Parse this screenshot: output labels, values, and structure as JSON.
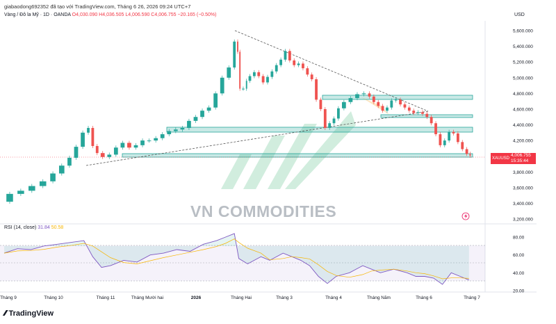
{
  "header": {
    "caption": "giabaodong692352 đã tạo với TradingView.com, Tháng 6 26, 2026 09:24 UTC+7",
    "symbol_line": "Vàng / Đô la Mỹ · 1D · OANDA",
    "ohlc": "O4,030.090 H4,036.505 L4,006.590 C4,006.755 −20.165 (−0.50%)",
    "currency": "USD"
  },
  "price_tag": {
    "symbol": "XAUUSD",
    "price": "4,006.755",
    "countdown": "15:35:44"
  },
  "rsi": {
    "label": "RSI (14, close)",
    "value1": "31.84",
    "value2": "50.58"
  },
  "watermark": "VN COMMODITIES",
  "footer": {
    "brand": "TradingView"
  },
  "colors": {
    "up": "#26a69a",
    "down": "#ef5350",
    "zone": "#26a69a",
    "rsi": "#7e57c2",
    "rsi_ma": "#f7b500"
  },
  "chart_data": {
    "type": "line",
    "title": "Vàng / Đô la Mỹ · 1D · OANDA",
    "price_axis": {
      "labels": [
        "5,600.000",
        "5,400.000",
        "5,200.000",
        "5,000.000",
        "4,800.000",
        "4,600.000",
        "4,400.000",
        "4,200.000",
        "3,800.000",
        "3,600.000",
        "3,400.000",
        "3,200.000"
      ],
      "range": [
        3200,
        5600
      ]
    },
    "rsi_axis": {
      "labels": [
        "80.00",
        "60.00",
        "40.00",
        "20.00"
      ],
      "range": [
        20,
        80
      ]
    },
    "x_labels": [
      {
        "text": "Tháng 9",
        "bold": false
      },
      {
        "text": "Tháng 10",
        "bold": false
      },
      {
        "text": "Tháng 11",
        "bold": false
      },
      {
        "text": "Tháng Mười hai",
        "bold": false
      },
      {
        "text": "2026",
        "bold": true
      },
      {
        "text": "Tháng Hai",
        "bold": false
      },
      {
        "text": "Tháng 3",
        "bold": false
      },
      {
        "text": "Tháng 4",
        "bold": false
      },
      {
        "text": "Tháng Năm",
        "bold": false
      },
      {
        "text": "Tháng 6",
        "bold": false
      },
      {
        "text": "Tháng 7",
        "bold": false
      }
    ],
    "series": [
      {
        "name": "XAUUSD",
        "points": [
          {
            "t": 0,
            "v": 3420
          },
          {
            "t": 5,
            "v": 3520
          },
          {
            "t": 10,
            "v": 3560
          },
          {
            "t": 15,
            "v": 3620
          },
          {
            "t": 20,
            "v": 3680
          },
          {
            "t": 24,
            "v": 3780
          },
          {
            "t": 28,
            "v": 3880
          },
          {
            "t": 31,
            "v": 3980
          },
          {
            "t": 34,
            "v": 4120
          },
          {
            "t": 37,
            "v": 4300
          },
          {
            "t": 39,
            "v": 4360
          },
          {
            "t": 41,
            "v": 4130
          },
          {
            "t": 43,
            "v": 4040
          },
          {
            "t": 46,
            "v": 3990
          },
          {
            "t": 49,
            "v": 4020
          },
          {
            "t": 52,
            "v": 4110
          },
          {
            "t": 55,
            "v": 4170
          },
          {
            "t": 58,
            "v": 4110
          },
          {
            "t": 61,
            "v": 4140
          },
          {
            "t": 64,
            "v": 4200
          },
          {
            "t": 67,
            "v": 4200
          },
          {
            "t": 70,
            "v": 4230
          },
          {
            "t": 73,
            "v": 4280
          },
          {
            "t": 76,
            "v": 4320
          },
          {
            "t": 79,
            "v": 4340
          },
          {
            "t": 82,
            "v": 4360
          },
          {
            "t": 85,
            "v": 4450
          },
          {
            "t": 88,
            "v": 4500
          },
          {
            "t": 91,
            "v": 4580
          },
          {
            "t": 94,
            "v": 4620
          },
          {
            "t": 97,
            "v": 4800
          },
          {
            "t": 100,
            "v": 5000
          },
          {
            "t": 103,
            "v": 5130
          },
          {
            "t": 105,
            "v": 5460
          },
          {
            "t": 106,
            "v": 5330
          },
          {
            "t": 107,
            "v": 4860
          },
          {
            "t": 109,
            "v": 4860
          },
          {
            "t": 110,
            "v": 4960
          },
          {
            "t": 112,
            "v": 5020
          },
          {
            "t": 114,
            "v": 5070
          },
          {
            "t": 116,
            "v": 5020
          },
          {
            "t": 118,
            "v": 4940
          },
          {
            "t": 120,
            "v": 5010
          },
          {
            "t": 122,
            "v": 5080
          },
          {
            "t": 124,
            "v": 5160
          },
          {
            "t": 126,
            "v": 5230
          },
          {
            "t": 128,
            "v": 5340
          },
          {
            "t": 130,
            "v": 5220
          },
          {
            "t": 132,
            "v": 5160
          },
          {
            "t": 134,
            "v": 5180
          },
          {
            "t": 136,
            "v": 5120
          },
          {
            "t": 138,
            "v": 5040
          },
          {
            "t": 140,
            "v": 4980
          },
          {
            "t": 142,
            "v": 4720
          },
          {
            "t": 144,
            "v": 4600
          },
          {
            "t": 146,
            "v": 4360
          },
          {
            "t": 148,
            "v": 4420
          },
          {
            "t": 150,
            "v": 4480
          },
          {
            "t": 152,
            "v": 4610
          },
          {
            "t": 155,
            "v": 4690
          },
          {
            "t": 158,
            "v": 4740
          },
          {
            "t": 161,
            "v": 4790
          },
          {
            "t": 164,
            "v": 4800
          },
          {
            "t": 166,
            "v": 4760
          },
          {
            "t": 168,
            "v": 4690
          },
          {
            "t": 170,
            "v": 4640
          },
          {
            "t": 172,
            "v": 4580
          },
          {
            "t": 174,
            "v": 4620
          },
          {
            "t": 176,
            "v": 4710
          },
          {
            "t": 178,
            "v": 4720
          },
          {
            "t": 180,
            "v": 4660
          },
          {
            "t": 182,
            "v": 4620
          },
          {
            "t": 184,
            "v": 4580
          },
          {
            "t": 186,
            "v": 4550
          },
          {
            "t": 188,
            "v": 4560
          },
          {
            "t": 190,
            "v": 4540
          },
          {
            "t": 192,
            "v": 4500
          },
          {
            "t": 194,
            "v": 4420
          },
          {
            "t": 196,
            "v": 4280
          },
          {
            "t": 198,
            "v": 4140
          },
          {
            "t": 200,
            "v": 4200
          },
          {
            "t": 202,
            "v": 4310
          },
          {
            "t": 204,
            "v": 4290
          },
          {
            "t": 206,
            "v": 4180
          },
          {
            "t": 208,
            "v": 4090
          },
          {
            "t": 210,
            "v": 4030
          },
          {
            "t": 211,
            "v": 4006.755
          }
        ]
      },
      {
        "name": "RSI (14, close)",
        "points": [
          {
            "t": 0,
            "v": 62
          },
          {
            "t": 6,
            "v": 67
          },
          {
            "t": 12,
            "v": 66
          },
          {
            "t": 18,
            "v": 70
          },
          {
            "t": 24,
            "v": 72
          },
          {
            "t": 30,
            "v": 74
          },
          {
            "t": 36,
            "v": 76
          },
          {
            "t": 40,
            "v": 58
          },
          {
            "t": 44,
            "v": 46
          },
          {
            "t": 48,
            "v": 48
          },
          {
            "t": 54,
            "v": 54
          },
          {
            "t": 60,
            "v": 52
          },
          {
            "t": 66,
            "v": 60
          },
          {
            "t": 72,
            "v": 62
          },
          {
            "t": 78,
            "v": 66
          },
          {
            "t": 84,
            "v": 64
          },
          {
            "t": 90,
            "v": 72
          },
          {
            "t": 96,
            "v": 76
          },
          {
            "t": 100,
            "v": 80
          },
          {
            "t": 104,
            "v": 84
          },
          {
            "t": 106,
            "v": 56
          },
          {
            "t": 110,
            "v": 50
          },
          {
            "t": 116,
            "v": 58
          },
          {
            "t": 120,
            "v": 54
          },
          {
            "t": 126,
            "v": 62
          },
          {
            "t": 130,
            "v": 58
          },
          {
            "t": 134,
            "v": 54
          },
          {
            "t": 138,
            "v": 48
          },
          {
            "t": 142,
            "v": 36
          },
          {
            "t": 146,
            "v": 28
          },
          {
            "t": 150,
            "v": 36
          },
          {
            "t": 156,
            "v": 40
          },
          {
            "t": 162,
            "v": 48
          },
          {
            "t": 166,
            "v": 44
          },
          {
            "t": 170,
            "v": 40
          },
          {
            "t": 176,
            "v": 44
          },
          {
            "t": 182,
            "v": 40
          },
          {
            "t": 186,
            "v": 36
          },
          {
            "t": 190,
            "v": 36
          },
          {
            "t": 194,
            "v": 34
          },
          {
            "t": 198,
            "v": 27
          },
          {
            "t": 202,
            "v": 40
          },
          {
            "t": 206,
            "v": 36
          },
          {
            "t": 210,
            "v": 31.84
          }
        ]
      }
    ]
  }
}
